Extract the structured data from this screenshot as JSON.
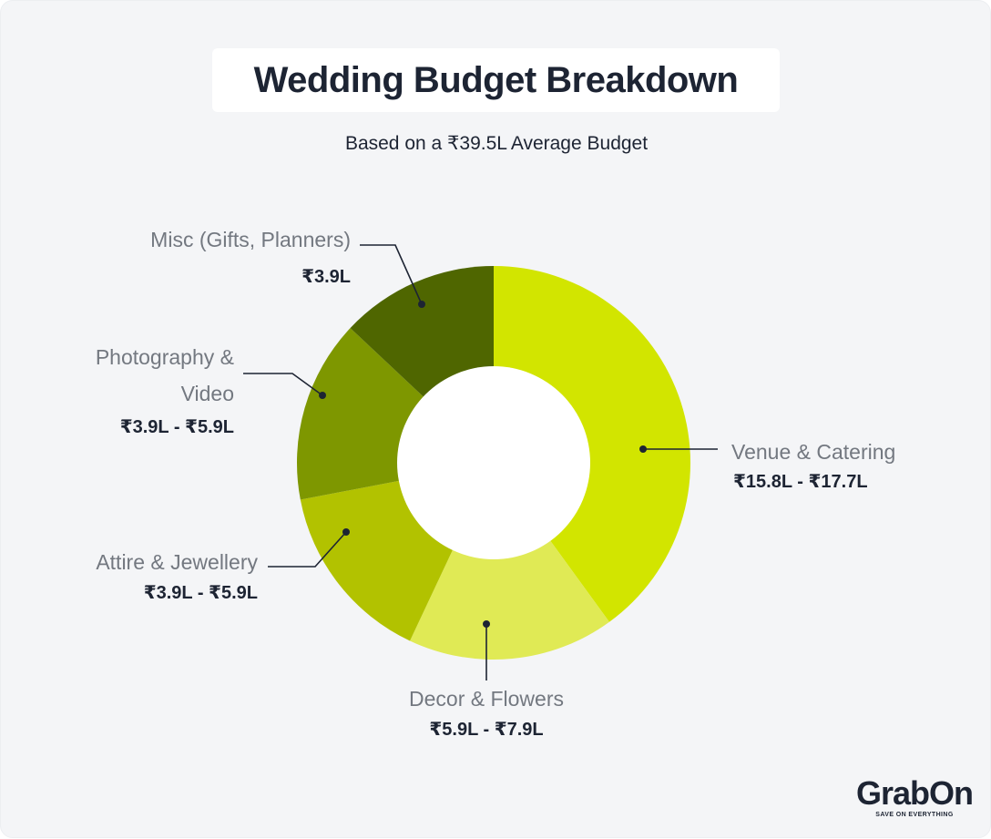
{
  "title": "Wedding Budget Breakdown",
  "subtitle": "Based on a ₹39.5L Average Budget",
  "logo": {
    "name": "GrabOn",
    "tagline": "SAVE ON EVERYTHING"
  },
  "chart_data": {
    "type": "pie",
    "variant": "donut",
    "title": "Wedding Budget Breakdown",
    "subtitle": "Based on a ₹39.5L Average Budget",
    "slices": [
      {
        "label": "Venue & Catering",
        "value_text": "₹15.8L - ₹17.7L",
        "share": 0.4,
        "color": "#d2e500"
      },
      {
        "label": "Decor & Flowers",
        "value_text": "₹5.9L - ₹7.9L",
        "share": 0.17,
        "color": "#e0ea55"
      },
      {
        "label": "Attire & Jewellery",
        "value_text": "₹3.9L - ₹5.9L",
        "share": 0.15,
        "color": "#b2c200"
      },
      {
        "label": "Photography & Video",
        "label_lines": [
          "Photography &",
          "Video"
        ],
        "value_text": "₹3.9L - ₹5.9L",
        "share": 0.15,
        "color": "#7e9700"
      },
      {
        "label": "Misc (Gifts, Planners)",
        "value_text": "₹3.9L",
        "share": 0.13,
        "color": "#4f6600"
      }
    ]
  }
}
